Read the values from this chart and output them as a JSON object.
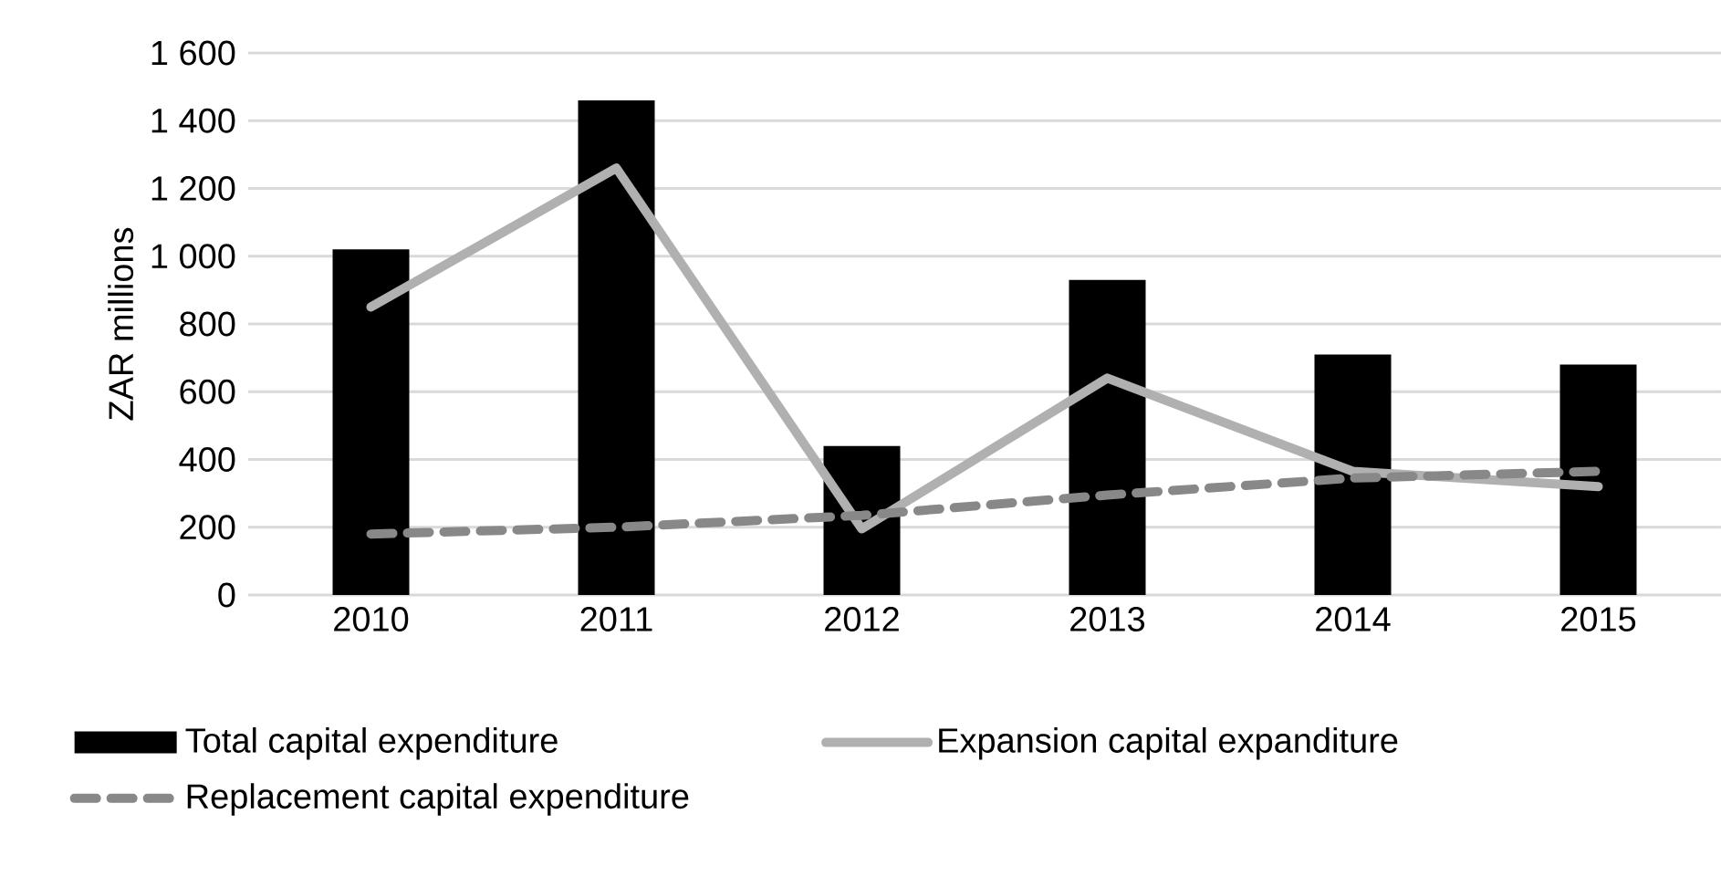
{
  "chart_data": {
    "type": "bar",
    "ylabel": "ZAR millions",
    "categories": [
      "2010",
      "2011",
      "2012",
      "2013",
      "2014",
      "2015"
    ],
    "series": [
      {
        "name": "Total capital expenditure",
        "color": "#000000",
        "values": [
          1020,
          1460,
          440,
          930,
          710,
          680
        ]
      },
      {
        "name": "Expansion capital expanditure",
        "type": "line",
        "color": "#b0b0b0",
        "values": [
          850,
          1260,
          195,
          640,
          365,
          320
        ]
      },
      {
        "name": "Replacement capital expenditure",
        "type": "line",
        "line_style": "dashed",
        "color": "#888888",
        "values": [
          180,
          200,
          235,
          295,
          345,
          365
        ]
      }
    ],
    "ylim": [
      0,
      1600
    ],
    "yticks": [
      0,
      200,
      400,
      600,
      800,
      {
        "value": 1000,
        "label": "1 000"
      },
      {
        "value": 1200,
        "label": "1 200"
      },
      {
        "value": 1400,
        "label": "1 400"
      },
      {
        "value": 1600,
        "label": "1 600"
      }
    ],
    "grid": "y",
    "legend": "bottom"
  }
}
